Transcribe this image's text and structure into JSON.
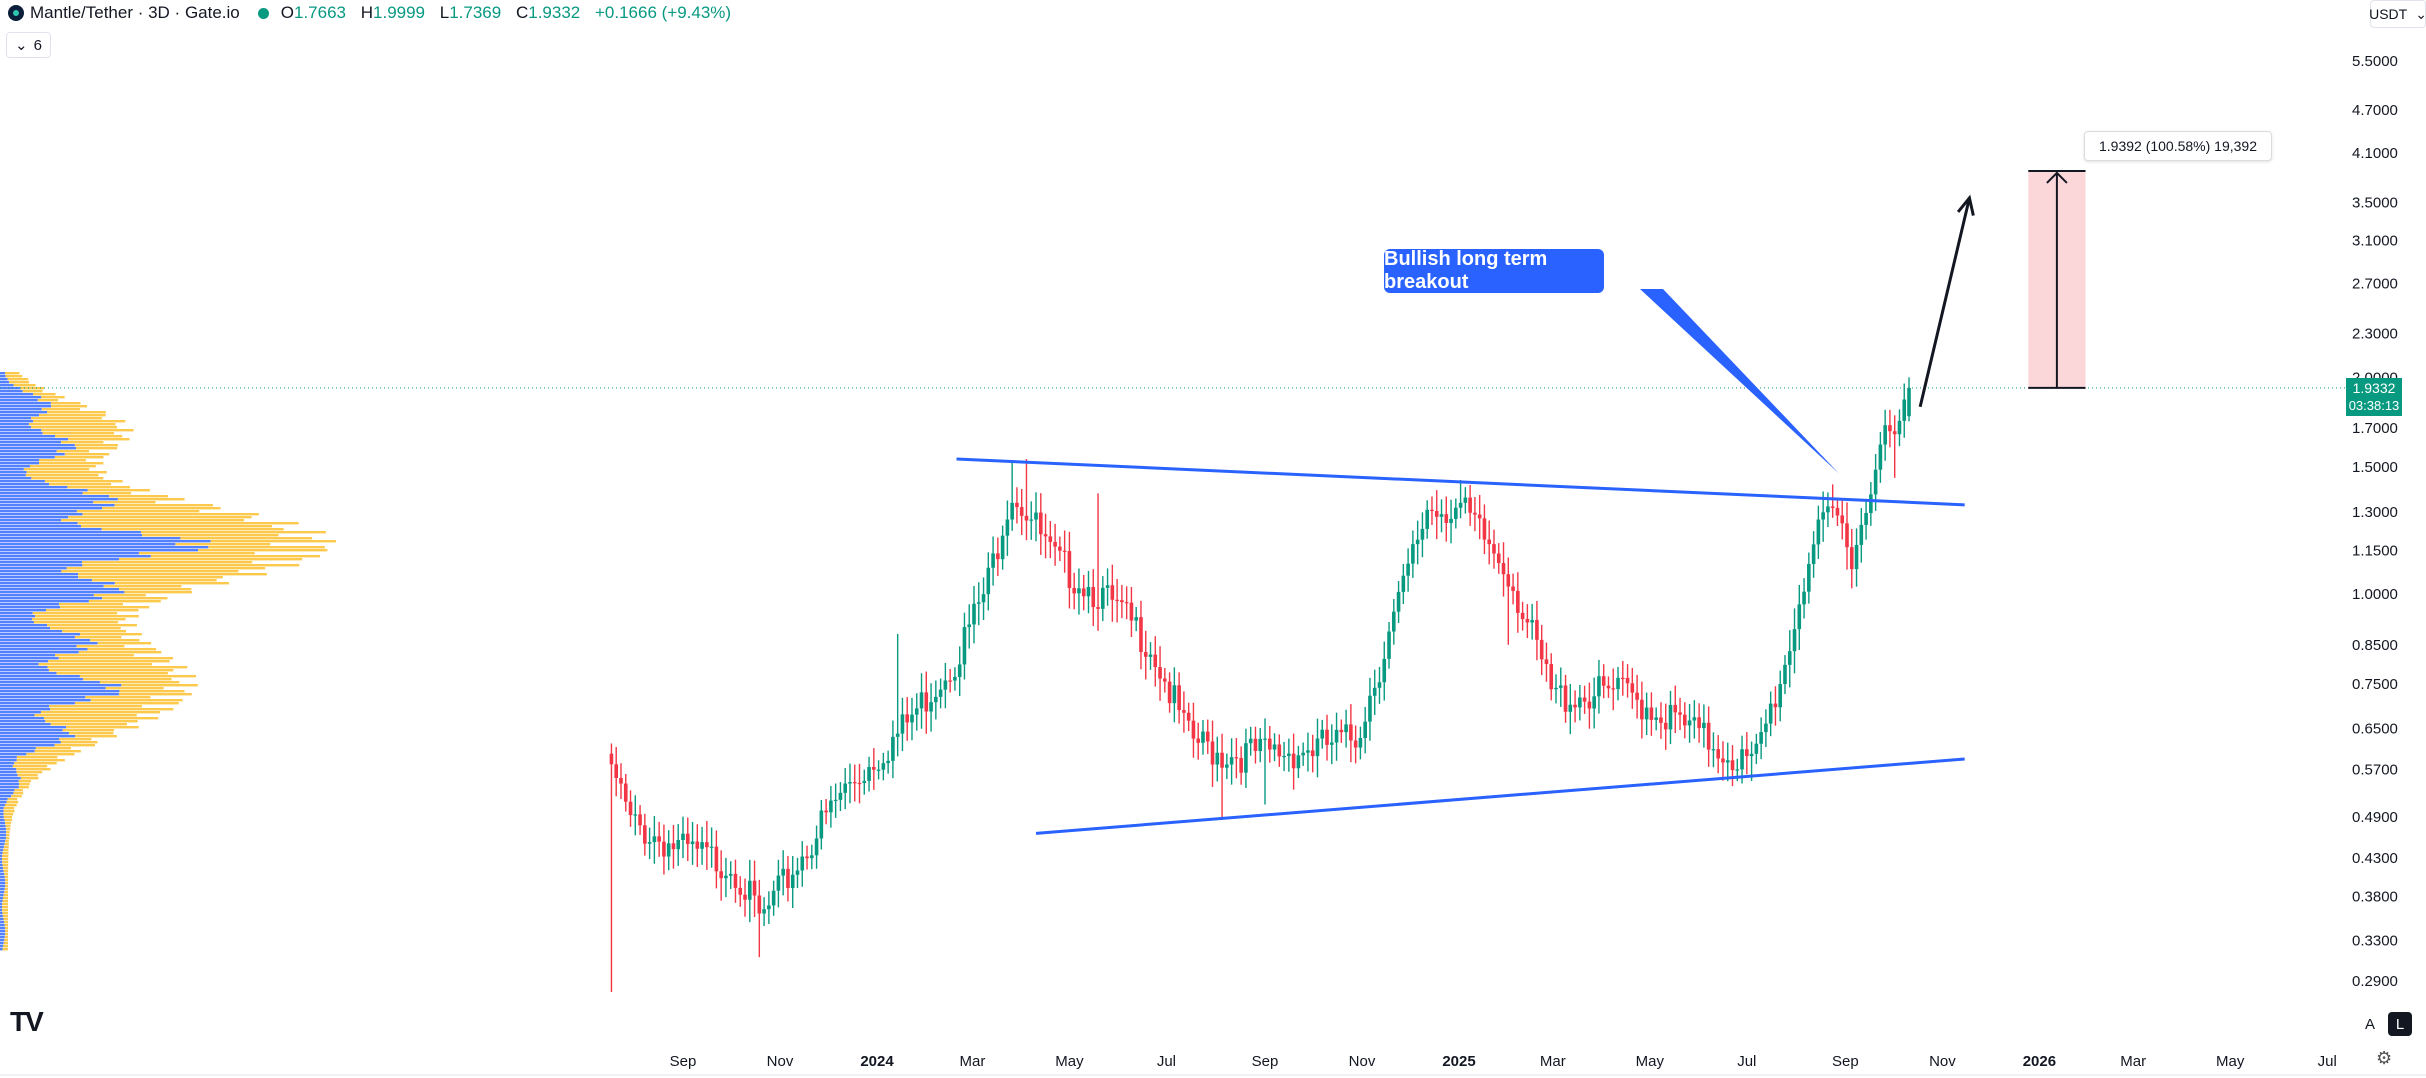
{
  "header": {
    "title": "Mantle/Tether · 3D · Gate.io",
    "open_key": "O",
    "open": "1.7663",
    "high_key": "H",
    "high": "1.9999",
    "low_key": "L",
    "low": "1.7369",
    "close_key": "C",
    "close": "1.9332",
    "change": "+0.1666 (+9.43%)"
  },
  "indicator_toggle": {
    "count": "6",
    "chevron": "chevron-down-icon"
  },
  "currency_selector": {
    "label": "USDT",
    "chevron": "chevron-down-icon"
  },
  "price_badge": {
    "price": "1.9332",
    "countdown": "03:38:13",
    "color": "#089981"
  },
  "annotations": {
    "callout_text": "Bullish long term breakout",
    "measure_label": "1.9392 (100.58%) 19,392"
  },
  "scale_buttons": {
    "auto": "A",
    "log": "L"
  },
  "colors": {
    "up": "#089981",
    "down": "#f23645",
    "trendline": "#2962ff",
    "callout": "#2962ff",
    "vp_blue": "#2962ff",
    "vp_yellow": "#fbc02d",
    "measure_fill": "#fbd7da"
  },
  "chart_data": {
    "type": "candlestick",
    "symbol": "Mantle/Tether",
    "interval": "3D",
    "y_scale": "log",
    "y_ticks": [
      "5.5000",
      "4.7000",
      "4.1000",
      "3.5000",
      "3.1000",
      "2.7000",
      "2.3000",
      "2.0000",
      "1.7000",
      "1.5000",
      "1.3000",
      "1.1500",
      "1.0000",
      "0.8500",
      "0.7500",
      "0.6500",
      "0.5700",
      "0.4900",
      "0.4300",
      "0.3800",
      "0.3300",
      "0.2900"
    ],
    "x_ticks": [
      "Sep",
      "Nov",
      "2024",
      "Mar",
      "May",
      "Jul",
      "Sep",
      "Nov",
      "2025",
      "Mar",
      "May",
      "Jul",
      "Sep",
      "Nov",
      "2026",
      "Mar",
      "May",
      "Jul"
    ],
    "x_ticks_bold": [
      "2024",
      "2025",
      "2026"
    ],
    "ohlc_anchors": [
      {
        "date": "2023-07-18",
        "close": 0.58,
        "low": 0.28,
        "high": 0.62
      },
      {
        "date": "2023-07-30",
        "close": 0.48
      },
      {
        "date": "2023-09-01",
        "close": 0.44
      },
      {
        "date": "2023-10-03",
        "close": 0.42
      },
      {
        "date": "2023-10-20",
        "close": 0.35,
        "low": 0.313
      },
      {
        "date": "2023-11-05",
        "close": 0.4
      },
      {
        "date": "2023-12-10",
        "close": 0.53
      },
      {
        "date": "2024-01-15",
        "close": 0.64,
        "high": 0.88
      },
      {
        "date": "2024-02-20",
        "close": 0.82
      },
      {
        "date": "2024-03-10",
        "close": 1.02
      },
      {
        "date": "2024-03-25",
        "close": 1.4,
        "high": 1.53
      },
      {
        "date": "2024-04-05",
        "close": 1.3,
        "high": 1.54
      },
      {
        "date": "2024-04-20",
        "close": 1.12
      },
      {
        "date": "2024-05-20",
        "close": 1.0,
        "high": 1.38
      },
      {
        "date": "2024-06-20",
        "close": 0.86
      },
      {
        "date": "2024-07-15",
        "close": 0.63
      },
      {
        "date": "2024-08-05",
        "close": 0.6,
        "low": 0.49
      },
      {
        "date": "2024-09-01",
        "close": 0.6,
        "low": 0.51
      },
      {
        "date": "2024-10-01",
        "close": 0.61
      },
      {
        "date": "2024-10-28",
        "close": 0.63
      },
      {
        "date": "2024-11-25",
        "close": 0.98
      },
      {
        "date": "2024-12-12",
        "close": 1.32
      },
      {
        "date": "2025-01-01",
        "close": 1.32,
        "high": 1.44
      },
      {
        "date": "2025-02-01",
        "close": 1.08,
        "low": 0.85
      },
      {
        "date": "2025-03-01",
        "close": 0.72
      },
      {
        "date": "2025-04-15",
        "close": 0.73
      },
      {
        "date": "2025-05-20",
        "close": 0.66
      },
      {
        "date": "2025-06-20",
        "close": 0.6
      },
      {
        "date": "2025-07-05",
        "close": 0.575,
        "low": 0.55
      },
      {
        "date": "2025-07-25",
        "close": 0.8
      },
      {
        "date": "2025-08-10",
        "close": 1.15
      },
      {
        "date": "2025-08-25",
        "close": 1.3,
        "high": 1.42
      },
      {
        "date": "2025-09-05",
        "close": 1.15
      },
      {
        "date": "2025-09-15",
        "close": 1.32
      },
      {
        "date": "2025-09-22",
        "close": 1.7
      },
      {
        "date": "2025-10-01",
        "close": 1.6,
        "low": 1.45
      },
      {
        "date": "2025-10-12",
        "close": 1.9332,
        "high": 1.9999,
        "open": 1.7663,
        "low": 1.7369
      }
    ],
    "trendlines": [
      {
        "name": "upper",
        "from": {
          "date": "2024-02-20",
          "price": 1.54
        },
        "to": {
          "date": "2025-11-15",
          "price": 1.33
        }
      },
      {
        "name": "lower",
        "from": {
          "date": "2024-04-10",
          "price": 0.465
        },
        "to": {
          "date": "2025-11-15",
          "price": 0.59
        }
      }
    ],
    "projection_arrow": {
      "from": {
        "date": "2025-10-18",
        "price": 1.82
      },
      "to": {
        "date": "2025-11-18",
        "price": 3.55
      }
    },
    "measure_range": {
      "from_date": "2025-12-25",
      "to_date": "2026-01-30",
      "low": 1.9332,
      "high": 3.87
    },
    "volume_profile": {
      "peak_price": 1.18,
      "secondary_price": 0.75
    }
  }
}
